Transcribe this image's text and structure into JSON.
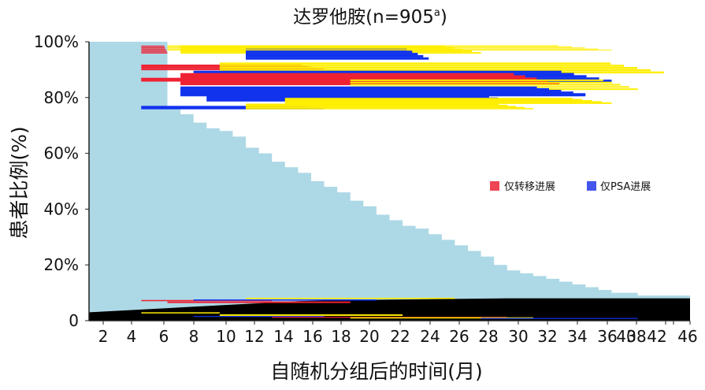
{
  "chart_data": {
    "type": "area",
    "title": "达罗他胺(n=905",
    "title_superscript": "a",
    "title_close": ")",
    "xlabel": "自随机分组后的时间(月)",
    "ylabel": "患者比例(%)",
    "x_ticks": [
      "2",
      "4",
      "6",
      "8",
      "10",
      "12",
      "14",
      "16",
      "18",
      "20",
      "22",
      "24",
      "26",
      "28",
      "30",
      "32",
      "34",
      "36",
      "38",
      "40",
      "42",
      "46"
    ],
    "y_ticks": [
      "0",
      "20%",
      "40%",
      "60%",
      "80%",
      "100%"
    ],
    "ylim": [
      0,
      100
    ],
    "legend": [
      {
        "label": "仅转移进展",
        "color": "#ee4455"
      },
      {
        "label": "仅PSA进展",
        "color": "#4455ee"
      }
    ],
    "colors": {
      "survival": "#add8e6",
      "metastasis": "#ee2233",
      "psa": "#1133ee",
      "yellow": "#ffee00",
      "black": "#000000"
    },
    "series": [
      {
        "name": "",
        "kind": "step",
        "x": [
          0,
          1,
          2,
          3,
          4,
          5,
          6,
          7,
          8,
          9,
          10,
          11,
          12,
          13,
          14,
          15,
          16,
          17,
          18,
          19,
          20,
          21,
          22,
          23,
          24,
          25,
          26,
          27,
          28,
          29,
          30,
          31,
          32,
          33,
          34,
          35,
          36,
          37,
          38,
          39,
          40,
          41,
          42,
          43,
          44,
          45,
          46
        ],
        "values": [
          100,
          100,
          100,
          100,
          100,
          100,
          76,
          74,
          71,
          69,
          68,
          66,
          62,
          60,
          57,
          55,
          53,
          50,
          48,
          46,
          43,
          41,
          38,
          36,
          34,
          33,
          31,
          29,
          27,
          25,
          23,
          20,
          18,
          17,
          16,
          15,
          14,
          13,
          12,
          11,
          10,
          10,
          9,
          9,
          9,
          9,
          9
        ]
      },
      {
        "name": "",
        "kind": "stacked-bottom",
        "x": [
          0,
          2,
          4,
          6,
          8,
          10,
          12,
          14,
          16,
          18,
          20,
          22,
          24,
          26,
          28,
          30,
          32,
          34,
          36,
          38,
          40,
          42,
          44,
          46
        ],
        "values": [
          3,
          3.5,
          4,
          4.5,
          5,
          5.5,
          6,
          6.5,
          7,
          7.2,
          7.4,
          7.5,
          7.6,
          7.7,
          7.8,
          7.9,
          8,
          8,
          8,
          8,
          8,
          8,
          8,
          8
        ]
      }
    ]
  }
}
